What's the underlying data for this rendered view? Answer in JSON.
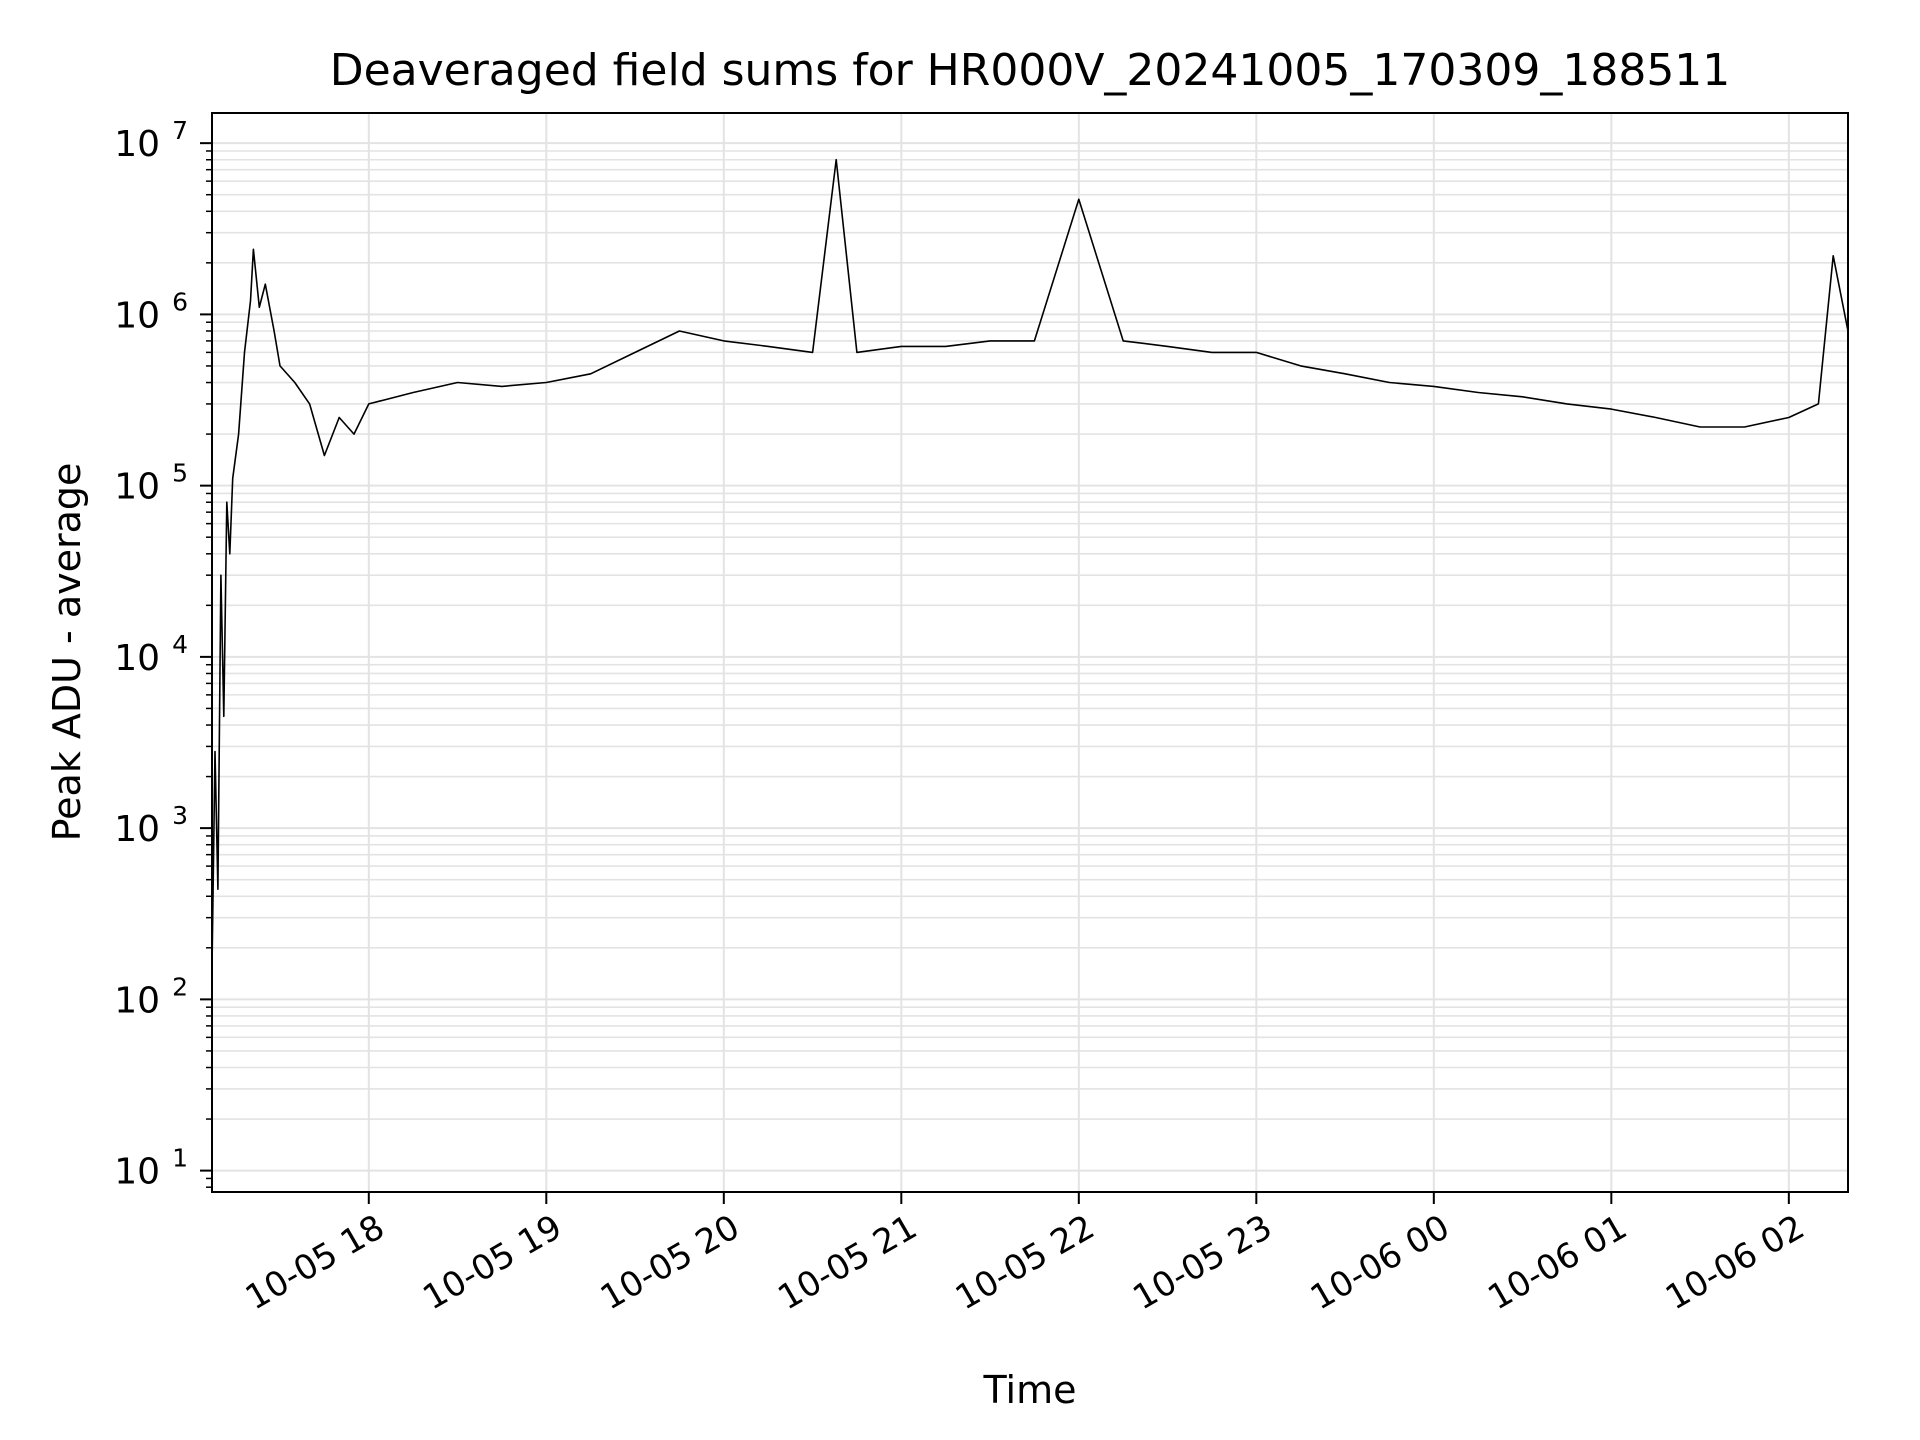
{
  "chart_data": {
    "type": "line",
    "title": "Deaveraged field sums for HR000V_20241005_170309_188511",
    "xlabel": "Time",
    "ylabel": "Peak ADU - average",
    "y_scale": "log",
    "ylim": [
      7.5,
      15000000
    ],
    "xlim": [
      "2024-10-05 17:07",
      "2024-10-06 02:20"
    ],
    "grid": true,
    "line_color": "#000000",
    "x_ticks": [
      {
        "t": "2024-10-05 18:00",
        "label": "10-05 18"
      },
      {
        "t": "2024-10-05 19:00",
        "label": "10-05 19"
      },
      {
        "t": "2024-10-05 20:00",
        "label": "10-05 20"
      },
      {
        "t": "2024-10-05 21:00",
        "label": "10-05 21"
      },
      {
        "t": "2024-10-05 22:00",
        "label": "10-05 22"
      },
      {
        "t": "2024-10-05 23:00",
        "label": "10-05 23"
      },
      {
        "t": "2024-10-06 00:00",
        "label": "10-06 00"
      },
      {
        "t": "2024-10-06 01:00",
        "label": "10-06 01"
      },
      {
        "t": "2024-10-06 02:00",
        "label": "10-06 02"
      }
    ],
    "y_ticks": [
      {
        "value": 10,
        "base": "10",
        "exp": "1"
      },
      {
        "value": 100,
        "base": "10",
        "exp": "2"
      },
      {
        "value": 1000,
        "base": "10",
        "exp": "3"
      },
      {
        "value": 10000,
        "base": "10",
        "exp": "4"
      },
      {
        "value": 100000,
        "base": "10",
        "exp": "5"
      },
      {
        "value": 1000000,
        "base": "10",
        "exp": "6"
      },
      {
        "value": 10000000,
        "base": "10",
        "exp": "7"
      }
    ],
    "series": [
      {
        "points": [
          [
            "2024-10-05 17:07",
            150
          ],
          [
            "2024-10-05 17:08",
            2800
          ],
          [
            "2024-10-05 17:09",
            440
          ],
          [
            "2024-10-05 17:10",
            30000
          ],
          [
            "2024-10-05 17:11",
            4500
          ],
          [
            "2024-10-05 17:12",
            80000
          ],
          [
            "2024-10-05 17:13",
            40000
          ],
          [
            "2024-10-05 17:14",
            110000
          ],
          [
            "2024-10-05 17:16",
            200000
          ],
          [
            "2024-10-05 17:18",
            600000
          ],
          [
            "2024-10-05 17:20",
            1200000
          ],
          [
            "2024-10-05 17:21",
            2400000
          ],
          [
            "2024-10-05 17:23",
            1100000
          ],
          [
            "2024-10-05 17:25",
            1500000
          ],
          [
            "2024-10-05 17:28",
            800000
          ],
          [
            "2024-10-05 17:30",
            500000
          ],
          [
            "2024-10-05 17:35",
            400000
          ],
          [
            "2024-10-05 17:40",
            300000
          ],
          [
            "2024-10-05 17:45",
            150000
          ],
          [
            "2024-10-05 17:50",
            250000
          ],
          [
            "2024-10-05 17:55",
            200000
          ],
          [
            "2024-10-05 18:00",
            300000
          ],
          [
            "2024-10-05 18:15",
            350000
          ],
          [
            "2024-10-05 18:30",
            400000
          ],
          [
            "2024-10-05 18:45",
            380000
          ],
          [
            "2024-10-05 19:00",
            400000
          ],
          [
            "2024-10-05 19:15",
            450000
          ],
          [
            "2024-10-05 19:30",
            600000
          ],
          [
            "2024-10-05 19:45",
            800000
          ],
          [
            "2024-10-05 20:00",
            700000
          ],
          [
            "2024-10-05 20:15",
            650000
          ],
          [
            "2024-10-05 20:30",
            600000
          ],
          [
            "2024-10-05 20:38",
            8000000
          ],
          [
            "2024-10-05 20:45",
            600000
          ],
          [
            "2024-10-05 21:00",
            650000
          ],
          [
            "2024-10-05 21:15",
            650000
          ],
          [
            "2024-10-05 21:30",
            700000
          ],
          [
            "2024-10-05 21:45",
            700000
          ],
          [
            "2024-10-05 22:00",
            4700000
          ],
          [
            "2024-10-05 22:15",
            700000
          ],
          [
            "2024-10-05 22:30",
            650000
          ],
          [
            "2024-10-05 22:45",
            600000
          ],
          [
            "2024-10-05 23:00",
            600000
          ],
          [
            "2024-10-05 23:15",
            500000
          ],
          [
            "2024-10-05 23:30",
            450000
          ],
          [
            "2024-10-05 23:45",
            400000
          ],
          [
            "2024-10-06 00:00",
            380000
          ],
          [
            "2024-10-06 00:15",
            350000
          ],
          [
            "2024-10-06 00:30",
            330000
          ],
          [
            "2024-10-06 00:45",
            300000
          ],
          [
            "2024-10-06 01:00",
            280000
          ],
          [
            "2024-10-06 01:15",
            250000
          ],
          [
            "2024-10-06 01:30",
            220000
          ],
          [
            "2024-10-06 01:45",
            220000
          ],
          [
            "2024-10-06 02:00",
            250000
          ],
          [
            "2024-10-06 02:10",
            300000
          ],
          [
            "2024-10-06 02:15",
            2200000
          ],
          [
            "2024-10-06 02:20",
            800000
          ]
        ]
      }
    ]
  }
}
